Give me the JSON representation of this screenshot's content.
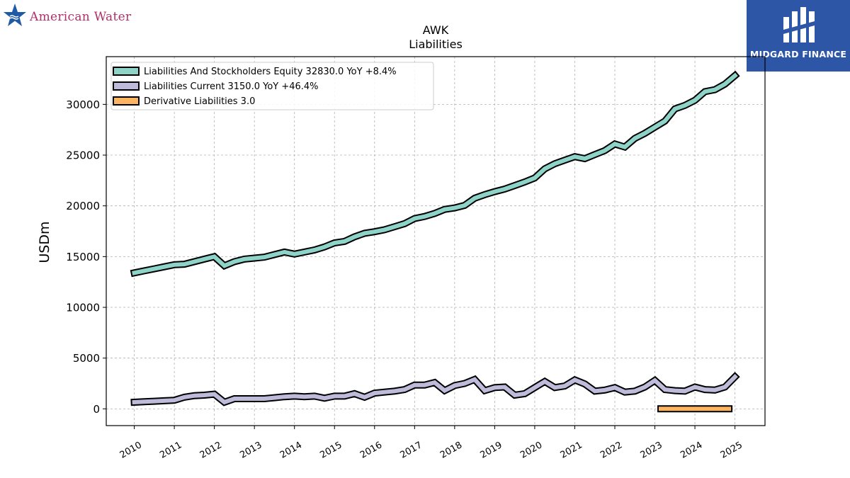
{
  "logos": {
    "left_brand": "American Water",
    "right_brand": "MIDGARD FINANCE"
  },
  "chart_data": {
    "type": "line",
    "title": "AWK",
    "subtitle": "Liabilities",
    "ylabel": "USDm",
    "xlabel": "",
    "xlim": [
      2009.3,
      2025.75
    ],
    "ylim": [
      -1650,
      34700
    ],
    "yticks": [
      0,
      5000,
      10000,
      15000,
      20000,
      25000,
      30000
    ],
    "xticks": [
      "2010",
      "2011",
      "2012",
      "2013",
      "2014",
      "2015",
      "2016",
      "2017",
      "2018",
      "2019",
      "2020",
      "2021",
      "2022",
      "2023",
      "2024",
      "2025"
    ],
    "grid": true,
    "legend_position": "top-left",
    "series": [
      {
        "name": "Liabilities And Stockholders Equity",
        "legend": "Liabilities And Stockholders Equity  32830.0 YoY +8.4%",
        "color": "#8dd3c7",
        "x": [
          2010.0,
          2010.25,
          2010.5,
          2010.75,
          2011.0,
          2011.25,
          2011.5,
          2011.75,
          2012.0,
          2012.25,
          2012.5,
          2012.75,
          2013.0,
          2013.25,
          2013.5,
          2013.75,
          2014.0,
          2014.25,
          2014.5,
          2014.75,
          2015.0,
          2015.25,
          2015.5,
          2015.75,
          2016.0,
          2016.25,
          2016.5,
          2016.75,
          2017.0,
          2017.25,
          2017.5,
          2017.75,
          2018.0,
          2018.25,
          2018.5,
          2018.75,
          2019.0,
          2019.25,
          2019.5,
          2019.75,
          2020.0,
          2020.25,
          2020.5,
          2020.75,
          2021.0,
          2021.25,
          2021.5,
          2021.75,
          2022.0,
          2022.25,
          2022.5,
          2022.75,
          2023.0,
          2023.25,
          2023.5,
          2023.75,
          2024.0,
          2024.25,
          2024.5,
          2024.75,
          2025.0
        ],
        "values": [
          13400,
          13600,
          13800,
          14000,
          14200,
          14250,
          14500,
          14750,
          15000,
          14100,
          14500,
          14750,
          14850,
          14950,
          15200,
          15450,
          15250,
          15450,
          15650,
          15950,
          16350,
          16500,
          16950,
          17300,
          17450,
          17650,
          17950,
          18250,
          18750,
          18950,
          19250,
          19650,
          19800,
          20050,
          20750,
          21100,
          21400,
          21650,
          22000,
          22350,
          22750,
          23650,
          24150,
          24500,
          24850,
          24650,
          25050,
          25450,
          26100,
          25800,
          26650,
          27150,
          27750,
          28350,
          29550,
          29900,
          30400,
          31250,
          31450,
          32000,
          32830
        ]
      },
      {
        "name": "Liabilities Current",
        "legend": "Liabilities Current  3150.0 YoY +46.4%",
        "color": "#bebada",
        "x": [
          2010.0,
          2010.25,
          2010.5,
          2010.75,
          2011.0,
          2011.25,
          2011.5,
          2011.75,
          2012.0,
          2012.25,
          2012.5,
          2012.75,
          2013.0,
          2013.25,
          2013.5,
          2013.75,
          2014.0,
          2014.25,
          2014.5,
          2014.75,
          2015.0,
          2015.25,
          2015.5,
          2015.75,
          2016.0,
          2016.25,
          2016.5,
          2016.75,
          2017.0,
          2017.25,
          2017.5,
          2017.75,
          2018.0,
          2018.25,
          2018.5,
          2018.75,
          2019.0,
          2019.25,
          2019.5,
          2019.75,
          2020.0,
          2020.25,
          2020.5,
          2020.75,
          2021.0,
          2021.25,
          2021.5,
          2021.75,
          2022.0,
          2022.25,
          2022.5,
          2022.75,
          2023.0,
          2023.25,
          2023.5,
          2023.75,
          2024.0,
          2024.25,
          2024.5,
          2024.75,
          2025.0
        ],
        "values": [
          650,
          700,
          750,
          800,
          850,
          1150,
          1300,
          1350,
          1450,
          650,
          1000,
          1000,
          1000,
          1000,
          1100,
          1200,
          1250,
          1200,
          1250,
          1050,
          1250,
          1250,
          1500,
          1150,
          1550,
          1650,
          1750,
          1900,
          2350,
          2350,
          2600,
          1800,
          2300,
          2500,
          2900,
          1800,
          2100,
          2150,
          1350,
          1500,
          2100,
          2700,
          2100,
          2250,
          2850,
          2450,
          1750,
          1850,
          2100,
          1650,
          1750,
          2150,
          2800,
          1900,
          1800,
          1750,
          2150,
          1900,
          1850,
          2150,
          3150
        ]
      },
      {
        "name": "Derivative Liabilities",
        "legend": "Derivative Liabilities  3.0",
        "color": "#fdb462",
        "x": [
          2023.15,
          2024.85
        ],
        "values": [
          3,
          3
        ]
      }
    ]
  }
}
